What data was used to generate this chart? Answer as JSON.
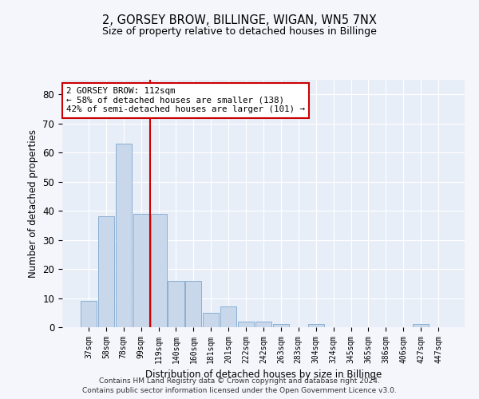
{
  "title1": "2, GORSEY BROW, BILLINGE, WIGAN, WN5 7NX",
  "title2": "Size of property relative to detached houses in Billinge",
  "xlabel": "Distribution of detached houses by size in Billinge",
  "ylabel": "Number of detached properties",
  "categories": [
    "37sqm",
    "58sqm",
    "78sqm",
    "99sqm",
    "119sqm",
    "140sqm",
    "160sqm",
    "181sqm",
    "201sqm",
    "222sqm",
    "242sqm",
    "263sqm",
    "283sqm",
    "304sqm",
    "324sqm",
    "345sqm",
    "365sqm",
    "386sqm",
    "406sqm",
    "427sqm",
    "447sqm"
  ],
  "values": [
    9,
    38,
    63,
    39,
    39,
    16,
    16,
    5,
    7,
    2,
    2,
    1,
    0,
    1,
    0,
    0,
    0,
    0,
    0,
    1,
    0
  ],
  "bar_color": "#c8d8ea",
  "bar_edge_color": "#89afd4",
  "vline_x": 3.5,
  "vline_color": "#cc0000",
  "annotation_title": "2 GORSEY BROW: 112sqm",
  "annotation_line1": "← 58% of detached houses are smaller (138)",
  "annotation_line2": "42% of semi-detached houses are larger (101) →",
  "annotation_box_color": "#cc0000",
  "ylim": [
    0,
    85
  ],
  "yticks": [
    0,
    10,
    20,
    30,
    40,
    50,
    60,
    70,
    80
  ],
  "bg_color": "#e8eef8",
  "grid_color": "#ffffff",
  "fig_bg": "#f4f6fc",
  "footer1": "Contains HM Land Registry data © Crown copyright and database right 2024.",
  "footer2": "Contains public sector information licensed under the Open Government Licence v3.0."
}
